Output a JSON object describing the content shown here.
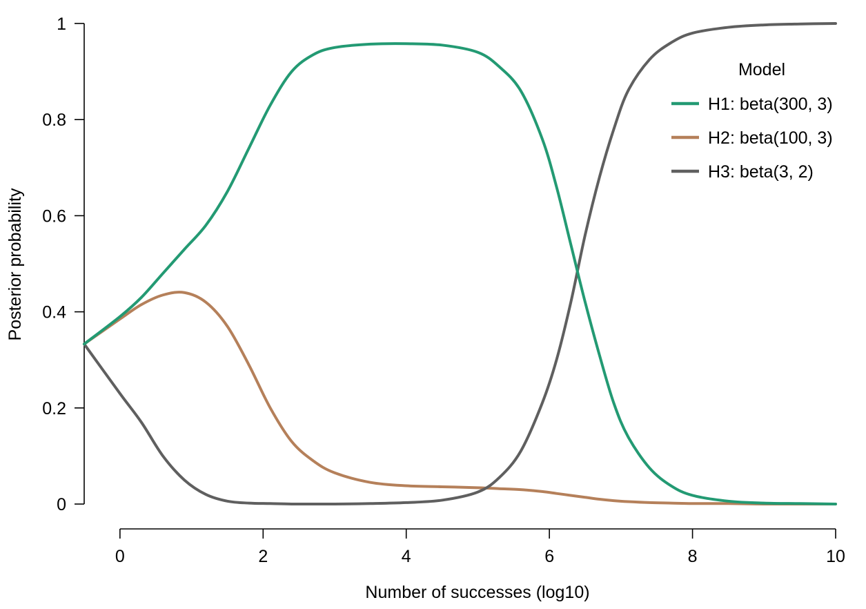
{
  "chart_data": {
    "type": "line",
    "xlabel": "Number of successes (log10)",
    "ylabel": "Posterior probability",
    "xlim": [
      -0.5,
      10
    ],
    "ylim": [
      0,
      1
    ],
    "x_ticks": [
      0,
      2,
      4,
      6,
      8,
      10
    ],
    "y_ticks": [
      0,
      0.2,
      0.4,
      0.6,
      0.8,
      1
    ],
    "x_tick_labels": [
      "0",
      "2",
      "4",
      "6",
      "8",
      "10"
    ],
    "y_tick_labels": [
      "0",
      "0.2",
      "0.4",
      "0.6",
      "0.8",
      "1"
    ],
    "grid": false,
    "legend": {
      "title": "Model",
      "placement": "top-right"
    },
    "x": [
      -0.5,
      0,
      0.3,
      0.6,
      0.9,
      1.2,
      1.5,
      1.8,
      2.1,
      2.4,
      2.7,
      3.0,
      3.5,
      4.0,
      4.5,
      5.0,
      5.3,
      5.6,
      5.9,
      6.1,
      6.3,
      6.5,
      6.7,
      6.9,
      7.1,
      7.4,
      7.7,
      8.0,
      8.5,
      9.0,
      9.5,
      10.0
    ],
    "series": [
      {
        "name": "H1: beta(300, 3)",
        "color": "#239a73",
        "values": [
          0.333,
          0.39,
          0.43,
          0.48,
          0.53,
          0.58,
          0.65,
          0.74,
          0.83,
          0.9,
          0.935,
          0.95,
          0.957,
          0.958,
          0.955,
          0.94,
          0.91,
          0.86,
          0.76,
          0.66,
          0.54,
          0.42,
          0.31,
          0.21,
          0.14,
          0.075,
          0.038,
          0.018,
          0.006,
          0.002,
          0.001,
          0.0
        ]
      },
      {
        "name": "H2: beta(100, 3)",
        "color": "#b5805a",
        "values": [
          0.333,
          0.385,
          0.415,
          0.435,
          0.44,
          0.42,
          0.37,
          0.29,
          0.2,
          0.13,
          0.09,
          0.065,
          0.045,
          0.038,
          0.036,
          0.034,
          0.032,
          0.03,
          0.026,
          0.022,
          0.018,
          0.014,
          0.01,
          0.007,
          0.005,
          0.003,
          0.002,
          0.001,
          0.001,
          0.0,
          0.0,
          0.0
        ]
      },
      {
        "name": "H3: beta(3, 2)",
        "color": "#5f5f5f",
        "values": [
          0.333,
          0.23,
          0.17,
          0.1,
          0.05,
          0.02,
          0.006,
          0.002,
          0.001,
          0.0,
          0.0,
          0.0,
          0.001,
          0.003,
          0.008,
          0.025,
          0.055,
          0.11,
          0.21,
          0.3,
          0.42,
          0.56,
          0.68,
          0.78,
          0.86,
          0.925,
          0.96,
          0.98,
          0.992,
          0.997,
          0.999,
          1.0
        ]
      }
    ]
  }
}
